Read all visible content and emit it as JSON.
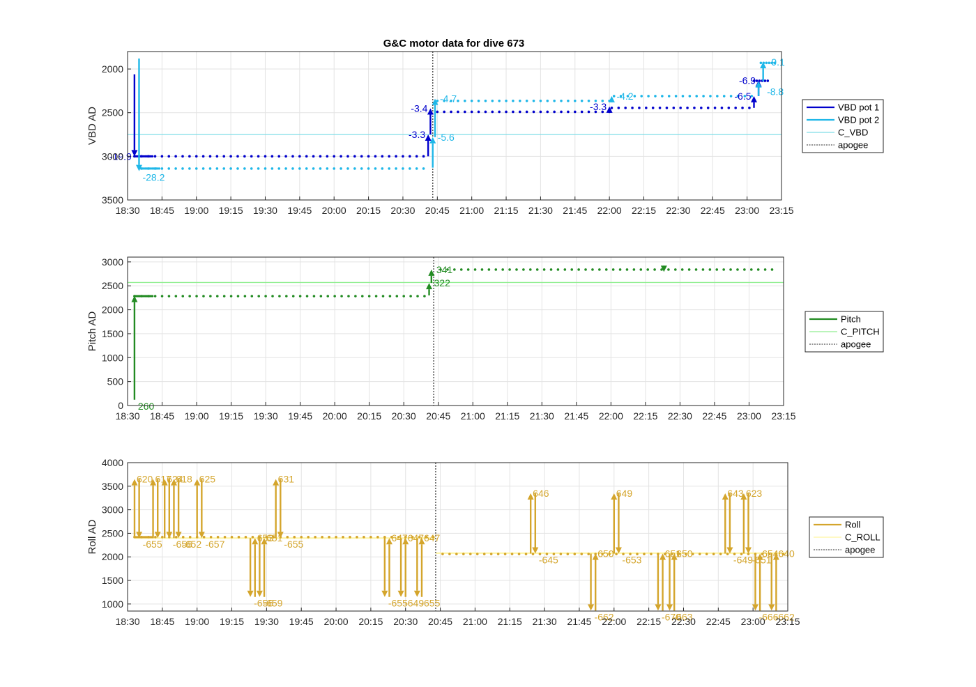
{
  "title": "G&C motor data for dive 673",
  "colors": {
    "vbd1": "#0000cc",
    "vbd2": "#1fb7e8",
    "c_vbd": "#7fdde8",
    "pitch": "#228b22",
    "c_pitch": "#90ee90",
    "roll": "#d4a52c",
    "c_roll": "#fff5a0",
    "apogee": "#555555",
    "grid": "#e3e3e3"
  },
  "x_ticks": [
    "18:30",
    "18:45",
    "19:00",
    "19:15",
    "19:30",
    "19:45",
    "20:00",
    "20:15",
    "20:30",
    "20:45",
    "21:00",
    "21:15",
    "21:30",
    "21:45",
    "22:00",
    "22:15",
    "22:30",
    "22:45",
    "23:00",
    "23:15"
  ],
  "chart_data": [
    {
      "type": "line",
      "name": "vbd",
      "ylabel": "VBD AD",
      "ylim": [
        1800,
        3500
      ],
      "y_reversed": true,
      "y_ticks": [
        2000,
        2500,
        3000,
        3500
      ],
      "y_tick_labels": [
        "2000",
        "2500",
        "3000",
        "3500"
      ],
      "xlim_min": [
        0,
        285
      ],
      "grid": true,
      "legend": [
        "VBD pot 1",
        "VBD pot 2",
        "C_VBD",
        "apogee"
      ],
      "legend_location": "right",
      "apogee_min": 133,
      "series": [
        {
          "name": "VBD pot 1",
          "kind": "dots",
          "x_range": [
            3,
            130
          ],
          "y": 3000
        },
        {
          "name": "VBD pot 1",
          "kind": "dots",
          "x_range": [
            135,
            210
          ],
          "y": 2490
        },
        {
          "name": "VBD pot 1",
          "kind": "dots",
          "x_range": [
            211,
            272
          ],
          "y": 2445
        },
        {
          "name": "VBD pot 1",
          "kind": "dots",
          "x_range": [
            273,
            280
          ],
          "y": 2135
        },
        {
          "name": "VBD pot 2",
          "kind": "dots",
          "x_range": [
            6,
            130
          ],
          "y": 3140
        },
        {
          "name": "VBD pot 2",
          "kind": "dots",
          "x_range": [
            135,
            210
          ],
          "y": 2365
        },
        {
          "name": "VBD pot 2",
          "kind": "dots",
          "x_range": [
            212,
            272
          ],
          "y": 2310
        },
        {
          "name": "VBD pot 2",
          "kind": "dots",
          "x_range": [
            276,
            282
          ],
          "y": 1930
        }
      ],
      "constants": [
        {
          "name": "C_VBD",
          "y": 2750
        }
      ],
      "arrows": [
        {
          "series": "VBD pot 1",
          "x": 3,
          "y0": 2060,
          "y1": 3000,
          "label": "-19.9",
          "label_pos": "left"
        },
        {
          "series": "VBD pot 2",
          "x": 5,
          "y0": 1880,
          "y1": 3170,
          "label": "-28.2",
          "label_pos": "below-right"
        },
        {
          "series": "VBD pot 1",
          "x": 131,
          "y0": 3000,
          "y1": 2750,
          "label": "-3.3",
          "label_pos": "left"
        },
        {
          "series": "VBD pot 1",
          "x": 132,
          "y0": 2750,
          "y1": 2450,
          "label": "-3.4",
          "label_pos": "left"
        },
        {
          "series": "VBD pot 2",
          "x": 133,
          "y0": 3130,
          "y1": 2780,
          "label": "-5.6",
          "label_pos": "right"
        },
        {
          "series": "VBD pot 2",
          "x": 134,
          "y0": 2780,
          "y1": 2340,
          "label": "-4.7",
          "label_pos": "right"
        },
        {
          "series": "VBD pot 1",
          "x": 210,
          "y0": 2490,
          "y1": 2430,
          "label": "-3.3",
          "label_pos": "left"
        },
        {
          "series": "VBD pot 2",
          "x": 211,
          "y0": 2365,
          "y1": 2310,
          "label": "-4.2",
          "label_pos": "right"
        },
        {
          "series": "VBD pot 1",
          "x": 273,
          "y0": 2445,
          "y1": 2310,
          "label": "-6.5",
          "label_pos": "left"
        },
        {
          "series": "VBD pot 1",
          "x": 275,
          "y0": 2310,
          "y1": 2130,
          "label": "-6.9",
          "label_pos": "left"
        },
        {
          "series": "VBD pot 2",
          "x": 275,
          "y0": 2310,
          "y1": 2140,
          "label": "-8.8",
          "label_pos": "right-low"
        },
        {
          "series": "VBD pot 2",
          "x": 277,
          "y0": 2140,
          "y1": 1920,
          "label": "-9.1",
          "label_pos": "right"
        }
      ]
    },
    {
      "type": "line",
      "name": "pitch",
      "ylabel": "Pitch AD",
      "ylim": [
        0,
        3100
      ],
      "y_reversed": false,
      "y_ticks": [
        0,
        500,
        1000,
        1500,
        2000,
        2500,
        3000
      ],
      "y_tick_labels": [
        "0",
        "500",
        "1000",
        "1500",
        "2000",
        "2500",
        "3000"
      ],
      "xlim_min": [
        0,
        285
      ],
      "grid": true,
      "legend": [
        "Pitch",
        "C_PITCH",
        "apogee"
      ],
      "legend_location": "right",
      "apogee_min": 133,
      "series": [
        {
          "name": "Pitch",
          "kind": "dots",
          "x_range": [
            3,
            130
          ],
          "y": 2285
        },
        {
          "name": "Pitch",
          "kind": "dots",
          "x_range": [
            136,
            280
          ],
          "y": 2840
        }
      ],
      "constants": [
        {
          "name": "C_PITCH",
          "y": 2570
        }
      ],
      "arrows": [
        {
          "series": "Pitch",
          "x": 3,
          "y0": 120,
          "y1": 2290,
          "label": "260",
          "label_pos": "below-right"
        },
        {
          "series": "Pitch",
          "x": 131,
          "y0": 2300,
          "y1": 2560,
          "label": "322",
          "label_pos": "right"
        },
        {
          "series": "Pitch",
          "x": 132,
          "y0": 2560,
          "y1": 2840,
          "label": "341",
          "label_pos": "right"
        },
        {
          "series": "Pitch",
          "x": 233,
          "y0": 2860,
          "y1": 2790,
          "label": "",
          "label_pos": "none"
        }
      ]
    },
    {
      "type": "line",
      "name": "roll",
      "ylabel": "Roll AD",
      "ylim": [
        850,
        4000
      ],
      "y_reversed": false,
      "y_ticks": [
        1000,
        1500,
        2000,
        2500,
        3000,
        3500,
        4000
      ],
      "y_tick_labels": [
        "1000",
        "1500",
        "2000",
        "2500",
        "3000",
        "3500",
        "4000"
      ],
      "xlim_min": [
        0,
        285
      ],
      "grid": true,
      "legend": [
        "Roll",
        "C_ROLL",
        "apogee"
      ],
      "legend_location": "right",
      "apogee_min": 133,
      "series": [
        {
          "name": "Roll",
          "kind": "dots",
          "x_range": [
            3,
            133
          ],
          "y": 2420
        },
        {
          "name": "Roll",
          "kind": "dots",
          "x_range": [
            136,
            285
          ],
          "y": 2060
        }
      ],
      "constants": [
        {
          "name": "C_ROLL",
          "y_segments": [
            [
              3,
              133,
              2400
            ],
            [
              133,
              285,
              2080
            ]
          ]
        }
      ],
      "arrows": [
        {
          "x": 3,
          "y0": 2400,
          "y1": 3650,
          "label": "620",
          "label_pos": "top-right"
        },
        {
          "x": 5,
          "y0": 3650,
          "y1": 2400,
          "label": "-655",
          "label_pos": "below-right"
        },
        {
          "x": 11,
          "y0": 2400,
          "y1": 3650,
          "label": "617",
          "label_pos": "top-right"
        },
        {
          "x": 13,
          "y0": 3650,
          "y1": 2400,
          "label": "",
          "label_pos": "none"
        },
        {
          "x": 16,
          "y0": 2400,
          "y1": 3650,
          "label": "624",
          "label_pos": "top-right"
        },
        {
          "x": 18,
          "y0": 3650,
          "y1": 2400,
          "label": "-656",
          "label_pos": "below-right"
        },
        {
          "x": 20,
          "y0": 2400,
          "y1": 3650,
          "label": "618",
          "label_pos": "top-right"
        },
        {
          "x": 22,
          "y0": 3650,
          "y1": 2400,
          "label": "-652",
          "label_pos": "below-right"
        },
        {
          "x": 30,
          "y0": 2400,
          "y1": 3650,
          "label": "625",
          "label_pos": "top-right"
        },
        {
          "x": 32,
          "y0": 3650,
          "y1": 2400,
          "label": "-657",
          "label_pos": "below-right"
        },
        {
          "x": 53,
          "y0": 2400,
          "y1": 1150,
          "label": "-656",
          "label_pos": "below-right"
        },
        {
          "x": 55,
          "y0": 1150,
          "y1": 2400,
          "label": "653",
          "label_pos": "top-right"
        },
        {
          "x": 57,
          "y0": 2400,
          "y1": 1150,
          "label": "-659",
          "label_pos": "below-right"
        },
        {
          "x": 59,
          "y0": 1150,
          "y1": 2400,
          "label": "651",
          "label_pos": "top-right"
        },
        {
          "x": 64,
          "y0": 2400,
          "y1": 3650,
          "label": "631",
          "label_pos": "top-right"
        },
        {
          "x": 66,
          "y0": 3650,
          "y1": 2400,
          "label": "-655",
          "label_pos": "below-right"
        },
        {
          "x": 111,
          "y0": 2400,
          "y1": 1150,
          "label": "-655",
          "label_pos": "below-right"
        },
        {
          "x": 113,
          "y0": 1150,
          "y1": 2400,
          "label": "647",
          "label_pos": "top-right"
        },
        {
          "x": 118,
          "y0": 2400,
          "y1": 1150,
          "label": "-649",
          "label_pos": "below-right"
        },
        {
          "x": 120,
          "y0": 1150,
          "y1": 2400,
          "label": "647",
          "label_pos": "top-right"
        },
        {
          "x": 125,
          "y0": 2400,
          "y1": 1150,
          "label": "-655",
          "label_pos": "below-right"
        },
        {
          "x": 127,
          "y0": 1150,
          "y1": 2400,
          "label": "647",
          "label_pos": "top-right"
        },
        {
          "x": 174,
          "y0": 2070,
          "y1": 3350,
          "label": "646",
          "label_pos": "top-right"
        },
        {
          "x": 176,
          "y0": 3350,
          "y1": 2070,
          "label": "-645",
          "label_pos": "below-right"
        },
        {
          "x": 200,
          "y0": 2070,
          "y1": 860,
          "label": "-662",
          "label_pos": "below-right"
        },
        {
          "x": 202,
          "y0": 860,
          "y1": 2070,
          "label": "650",
          "label_pos": "top-right"
        },
        {
          "x": 210,
          "y0": 2070,
          "y1": 3350,
          "label": "649",
          "label_pos": "top-right"
        },
        {
          "x": 212,
          "y0": 3350,
          "y1": 2070,
          "label": "-653",
          "label_pos": "below-right"
        },
        {
          "x": 229,
          "y0": 2070,
          "y1": 860,
          "label": "-670",
          "label_pos": "below-right"
        },
        {
          "x": 231,
          "y0": 860,
          "y1": 2070,
          "label": "651",
          "label_pos": "top-right"
        },
        {
          "x": 234,
          "y0": 2070,
          "y1": 860,
          "label": "-663",
          "label_pos": "below-right"
        },
        {
          "x": 236,
          "y0": 860,
          "y1": 2070,
          "label": "650",
          "label_pos": "top-right"
        },
        {
          "x": 258,
          "y0": 2070,
          "y1": 3350,
          "label": "643",
          "label_pos": "top-right"
        },
        {
          "x": 260,
          "y0": 3350,
          "y1": 2070,
          "label": "-649",
          "label_pos": "below-right"
        },
        {
          "x": 266,
          "y0": 2070,
          "y1": 3350,
          "label": "623",
          "label_pos": "top-right"
        },
        {
          "x": 268,
          "y0": 3350,
          "y1": 2070,
          "label": "-651",
          "label_pos": "below-right"
        },
        {
          "x": 271,
          "y0": 2070,
          "y1": 860,
          "label": "-666",
          "label_pos": "below-right"
        },
        {
          "x": 273,
          "y0": 860,
          "y1": 2070,
          "label": "654",
          "label_pos": "top-right"
        },
        {
          "x": 278,
          "y0": 2070,
          "y1": 860,
          "label": "-662",
          "label_pos": "below-right"
        },
        {
          "x": 280,
          "y0": 860,
          "y1": 2070,
          "label": "640",
          "label_pos": "top-right"
        }
      ]
    }
  ]
}
